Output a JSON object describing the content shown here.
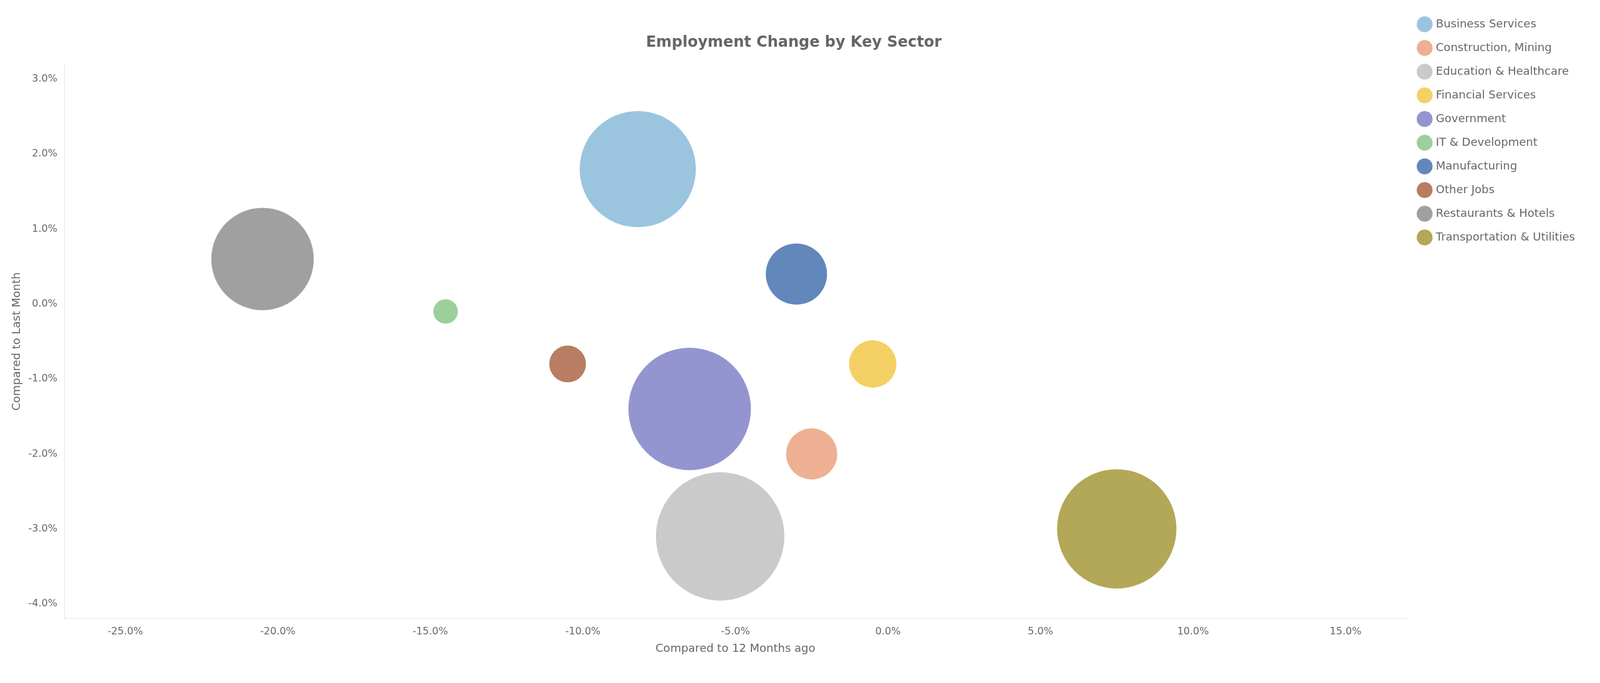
{
  "chart_data": {
    "type": "bubble",
    "title": "Employment Change by Key Sector",
    "xlabel": "Compared to 12 Months ago",
    "ylabel": "Compared to Last Month",
    "xlim": [
      -0.27,
      0.17
    ],
    "ylim": [
      -0.042,
      0.032
    ],
    "xticks": [
      {
        "value": -0.25,
        "label": "-25.0%"
      },
      {
        "value": -0.2,
        "label": "-20.0%"
      },
      {
        "value": -0.15,
        "label": "-15.0%"
      },
      {
        "value": -0.1,
        "label": "-10.0%"
      },
      {
        "value": -0.05,
        "label": "-5.0%"
      },
      {
        "value": 0.0,
        "label": "0.0%"
      },
      {
        "value": 0.05,
        "label": "5.0%"
      },
      {
        "value": 0.1,
        "label": "10.0%"
      },
      {
        "value": 0.15,
        "label": "15.0%"
      }
    ],
    "yticks": [
      {
        "value": -0.04,
        "label": "-4.0%"
      },
      {
        "value": -0.03,
        "label": "-3.0%"
      },
      {
        "value": -0.02,
        "label": "-2.0%"
      },
      {
        "value": -0.01,
        "label": "-1.0%"
      },
      {
        "value": 0.0,
        "label": "0.0%"
      },
      {
        "value": 0.01,
        "label": "1.0%"
      },
      {
        "value": 0.02,
        "label": "2.0%"
      },
      {
        "value": 0.03,
        "label": "3.0%"
      }
    ],
    "grid": false,
    "legend": "upper right",
    "series": [
      {
        "name": "Business Services",
        "x": [
          -0.082
        ],
        "y": [
          0.018
        ],
        "size": [
          18000
        ],
        "color": "#7ab0d4"
      },
      {
        "name": "Construction, Mining",
        "x": [
          -0.025
        ],
        "y": [
          -0.02
        ],
        "size": [
          3500
        ],
        "color": "#e8956d"
      },
      {
        "name": "Education & Healthcare",
        "x": [
          -0.055
        ],
        "y": [
          -0.031
        ],
        "size": [
          22000
        ],
        "color": "#b8b8b8"
      },
      {
        "name": "Financial Services",
        "x": [
          -0.005
        ],
        "y": [
          -0.008
        ],
        "size": [
          3000
        ],
        "color": "#f0c030"
      },
      {
        "name": "Government",
        "x": [
          -0.065
        ],
        "y": [
          -0.014
        ],
        "size": [
          20000
        ],
        "color": "#7070c0"
      },
      {
        "name": "IT & Development",
        "x": [
          -0.145
        ],
        "y": [
          -0.001
        ],
        "size": [
          800
        ],
        "color": "#7abf7a"
      },
      {
        "name": "Manufacturing",
        "x": [
          -0.03
        ],
        "y": [
          0.004
        ],
        "size": [
          5000
        ],
        "color": "#2e5fa3"
      },
      {
        "name": "Other Jobs",
        "x": [
          -0.105
        ],
        "y": [
          -0.008
        ],
        "size": [
          1800
        ],
        "color": "#a0522d"
      },
      {
        "name": "Restaurants & Hotels",
        "x": [
          -0.205
        ],
        "y": [
          0.006
        ],
        "size": [
          14000
        ],
        "color": "#808080"
      },
      {
        "name": "Transportation & Utilities",
        "x": [
          0.075
        ],
        "y": [
          -0.03
        ],
        "size": [
          19000
        ],
        "color": "#9a8a20"
      }
    ]
  }
}
